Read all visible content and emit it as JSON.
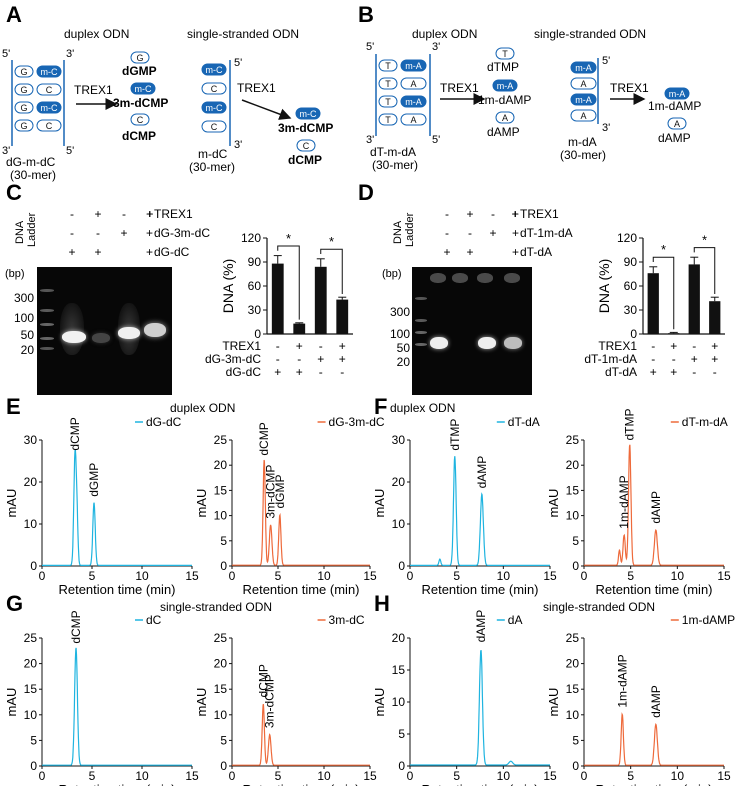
{
  "colors": {
    "cyan": "#1fb4e0",
    "orange": "#ee6a3b",
    "blue": "#1866b4",
    "bar": "#111111"
  },
  "panel_A": {
    "letter": "A",
    "duplex_label": "duplex ODN",
    "ss_label": "single-stranded ODN",
    "enzyme": "TREX1",
    "prime5": "5'",
    "prime3": "3'",
    "base_G": "G",
    "base_C": "C",
    "base_mod": "m-C",
    "duplex_products": [
      "dGMP",
      "3m-dCMP",
      "dCMP"
    ],
    "ss_products": [
      "3m-dCMP",
      "dCMP"
    ],
    "duplex_name": "dG-m-dC",
    "duplex_len": "(30-mer)",
    "ss_name": "m-dC",
    "ss_len": "(30-mer)"
  },
  "panel_B": {
    "letter": "B",
    "duplex_label": "duplex ODN",
    "ss_label": "single-stranded ODN",
    "enzyme": "TREX1",
    "prime5": "5'",
    "prime3": "3'",
    "base_T": "T",
    "base_A": "A",
    "base_mod": "m-A",
    "duplex_products": [
      "dTMP",
      "1m-dAMP",
      "dAMP"
    ],
    "ss_products": [
      "1m-dAMP",
      "dAMP"
    ],
    "duplex_name": "dT-m-dA",
    "duplex_len": "(30-mer)",
    "ss_name": "m-dA",
    "ss_len": "(30-mer)"
  },
  "panel_C": {
    "letter": "C",
    "ladder": [
      "DNA",
      "Ladder"
    ],
    "bp": "(bp)",
    "ladder_sizes": [
      "300",
      "100",
      "50",
      "20"
    ],
    "legend_rows": [
      {
        "label": "TREX1",
        "signs": [
          "-",
          "+",
          "-",
          "+"
        ]
      },
      {
        "label": "dG-3m-dC",
        "signs": [
          "-",
          "-",
          "+",
          "+"
        ]
      },
      {
        "label": "dG-dC",
        "signs": [
          "+",
          "+",
          "-",
          "-"
        ]
      }
    ],
    "row_prefix": "+"
  },
  "panel_D": {
    "letter": "D",
    "ladder": [
      "DNA",
      "Ladder"
    ],
    "bp": "(bp)",
    "ladder_sizes": [
      "300",
      "100",
      "50",
      "20"
    ],
    "legend_rows": [
      {
        "label": "TREX1",
        "signs": [
          "-",
          "+",
          "-",
          "+"
        ]
      },
      {
        "label": "dT-1m-dA",
        "signs": [
          "-",
          "-",
          "+",
          "+"
        ]
      },
      {
        "label": "dT-dA",
        "signs": [
          "+",
          "+",
          "-",
          "-"
        ]
      }
    ],
    "row_prefix": "+"
  },
  "panel_E": {
    "letter": "E",
    "title": "duplex ODN"
  },
  "panel_F": {
    "letter": "F",
    "title": "duplex ODN"
  },
  "panel_G": {
    "letter": "G",
    "title": "single-stranded  ODN"
  },
  "panel_H": {
    "letter": "H",
    "title": "single-stranded ODN"
  },
  "chart_data": [
    {
      "id": "C-bar",
      "type": "bar",
      "ylabel": "DNA (%)",
      "ylim": [
        0,
        120
      ],
      "yticks": [
        "0",
        "30",
        "60",
        "90",
        "120"
      ],
      "categories": [
        "1",
        "2",
        "3",
        "4"
      ],
      "values": [
        88,
        13,
        84,
        43
      ],
      "errors": [
        10,
        1,
        10,
        3
      ],
      "sig": "*",
      "xrows": [
        {
          "label": "TREX1",
          "signs": [
            "-",
            "+",
            "-",
            "+"
          ]
        },
        {
          "label": "dG-3m-dC",
          "signs": [
            "-",
            "-",
            "+",
            "+"
          ]
        },
        {
          "label": "dG-dC",
          "signs": [
            "+",
            "+",
            "-",
            "-"
          ]
        }
      ]
    },
    {
      "id": "D-bar",
      "type": "bar",
      "ylabel": "DNA (%)",
      "ylim": [
        0,
        120
      ],
      "yticks": [
        "0",
        "30",
        "60",
        "90",
        "120"
      ],
      "categories": [
        "1",
        "2",
        "3",
        "4"
      ],
      "values": [
        76,
        1,
        87,
        41
      ],
      "errors": [
        8,
        1,
        9,
        5
      ],
      "sig": "*",
      "xrows": [
        {
          "label": "TREX1",
          "signs": [
            "-",
            "+",
            "-",
            "+"
          ]
        },
        {
          "label": "dT-1m-dA",
          "signs": [
            "-",
            "-",
            "+",
            "+"
          ]
        },
        {
          "label": "dT-dA",
          "signs": [
            "+",
            "+",
            "-",
            "-"
          ]
        }
      ]
    },
    {
      "id": "E1",
      "type": "line",
      "xlabel": "Retention time (min)",
      "ylabel": "mAU",
      "xlim": [
        0,
        15
      ],
      "ylim": [
        0,
        30
      ],
      "xticks": [
        "0",
        "5",
        "10",
        "15"
      ],
      "yticks": [
        "0",
        "10",
        "20",
        "30"
      ],
      "series": [
        {
          "name": "dG-dC",
          "color": "cyan"
        }
      ],
      "peaks": [
        {
          "x": 3.3,
          "h": 26,
          "w": 0.12
        },
        {
          "x": 3.5,
          "h": 10,
          "w": 0.1
        },
        {
          "x": 5.2,
          "h": 15,
          "w": 0.12
        }
      ],
      "peak_labels": [
        {
          "text": "dCMP",
          "x": 3.3,
          "y": 27
        },
        {
          "text": "dGMP",
          "x": 5.2,
          "y": 16
        }
      ]
    },
    {
      "id": "E2",
      "type": "line",
      "xlabel": "Retention time (min)",
      "ylabel": "mAU",
      "xlim": [
        0,
        15
      ],
      "ylim": [
        0,
        25
      ],
      "xticks": [
        "0",
        "5",
        "10",
        "15"
      ],
      "yticks": [
        "0",
        "5",
        "10",
        "15",
        "20",
        "25"
      ],
      "series": [
        {
          "name": "dG-3m-dC",
          "color": "orange"
        }
      ],
      "peaks": [
        {
          "x": 3.5,
          "h": 21,
          "w": 0.12
        },
        {
          "x": 4.2,
          "h": 8,
          "w": 0.14
        },
        {
          "x": 5.2,
          "h": 10,
          "w": 0.12
        }
      ],
      "peak_labels": [
        {
          "text": "dCMP",
          "x": 3.5,
          "y": 21.5
        },
        {
          "text": "3m-dCMP",
          "x": 4.2,
          "y": 9
        },
        {
          "text": "dGMP",
          "x": 5.2,
          "y": 11
        }
      ]
    },
    {
      "id": "F1",
      "type": "line",
      "xlabel": "Retention time (min)",
      "ylabel": "mAU",
      "xlim": [
        0,
        15
      ],
      "ylim": [
        0,
        30
      ],
      "xticks": [
        "0",
        "5",
        "10",
        "15"
      ],
      "yticks": [
        "0",
        "10",
        "20",
        "30"
      ],
      "series": [
        {
          "name": "dT-dA",
          "color": "cyan"
        }
      ],
      "peaks": [
        {
          "x": 4.8,
          "h": 26,
          "w": 0.14
        },
        {
          "x": 3.2,
          "h": 1.5,
          "w": 0.1
        },
        {
          "x": 7.7,
          "h": 17,
          "w": 0.16
        }
      ],
      "peak_labels": [
        {
          "text": "dTMP",
          "x": 4.8,
          "y": 27
        },
        {
          "text": "dAMP",
          "x": 7.7,
          "y": 18
        }
      ]
    },
    {
      "id": "F2",
      "type": "line",
      "xlabel": "Retention time (min)",
      "ylabel": "mAU",
      "xlim": [
        0,
        15
      ],
      "ylim": [
        0,
        25
      ],
      "xticks": [
        "0",
        "5",
        "10",
        "15"
      ],
      "yticks": [
        "0",
        "5",
        "10",
        "15",
        "20",
        "25"
      ],
      "series": [
        {
          "name": "dT-m-dA",
          "color": "orange"
        }
      ],
      "peaks": [
        {
          "x": 3.8,
          "h": 3,
          "w": 0.1
        },
        {
          "x": 4.3,
          "h": 6,
          "w": 0.12
        },
        {
          "x": 4.9,
          "h": 24,
          "w": 0.13
        },
        {
          "x": 7.7,
          "h": 7,
          "w": 0.16
        }
      ],
      "peak_labels": [
        {
          "text": "1m-dAMP",
          "x": 4.3,
          "y": 7
        },
        {
          "text": "dTMP",
          "x": 4.9,
          "y": 24.5
        },
        {
          "text": "dAMP",
          "x": 7.7,
          "y": 8
        }
      ]
    },
    {
      "id": "G1",
      "type": "line",
      "xlabel": "Retention time (min)",
      "ylabel": "mAU",
      "xlim": [
        0,
        15
      ],
      "ylim": [
        0,
        25
      ],
      "xticks": [
        "0",
        "5",
        "10",
        "15"
      ],
      "yticks": [
        "0",
        "5",
        "10",
        "15",
        "20",
        "25"
      ],
      "series": [
        {
          "name": "dC",
          "color": "cyan"
        }
      ],
      "peaks": [
        {
          "x": 3.4,
          "h": 23,
          "w": 0.14
        }
      ],
      "peak_labels": [
        {
          "text": "dCMP",
          "x": 3.4,
          "y": 23.5
        }
      ]
    },
    {
      "id": "G2",
      "type": "line",
      "xlabel": "Retention time (min)",
      "ylabel": "mAU",
      "xlim": [
        0,
        15
      ],
      "ylim": [
        0,
        25
      ],
      "xticks": [
        "0",
        "5",
        "10",
        "15"
      ],
      "yticks": [
        "0",
        "5",
        "10",
        "15",
        "20",
        "25"
      ],
      "series": [
        {
          "name": "3m-dC",
          "color": "orange"
        }
      ],
      "peaks": [
        {
          "x": 3.4,
          "h": 12,
          "w": 0.12
        },
        {
          "x": 4.1,
          "h": 6,
          "w": 0.14
        }
      ],
      "peak_labels": [
        {
          "text": "dCMP",
          "x": 3.4,
          "y": 13
        },
        {
          "text": "3m-dCMP",
          "x": 4.1,
          "y": 7
        }
      ]
    },
    {
      "id": "H1",
      "type": "line",
      "xlabel": "Retention time (min)",
      "ylabel": "mAU",
      "xlim": [
        0,
        15
      ],
      "ylim": [
        0,
        20
      ],
      "xticks": [
        "0",
        "5",
        "10",
        "15"
      ],
      "yticks": [
        "0",
        "5",
        "10",
        "15",
        "20"
      ],
      "series": [
        {
          "name": "dA",
          "color": "cyan"
        }
      ],
      "peaks": [
        {
          "x": 7.6,
          "h": 18,
          "w": 0.16
        },
        {
          "x": 10.8,
          "h": 0.6,
          "w": 0.2
        }
      ],
      "peak_labels": [
        {
          "text": "dAMP",
          "x": 7.6,
          "y": 19
        }
      ]
    },
    {
      "id": "H2",
      "type": "line",
      "xlabel": "Retention time (min)",
      "ylabel": "mAU",
      "xlim": [
        0,
        15
      ],
      "ylim": [
        0,
        25
      ],
      "xticks": [
        "0",
        "5",
        "10",
        "15"
      ],
      "yticks": [
        "0",
        "5",
        "10",
        "15",
        "20",
        "25"
      ],
      "series": [
        {
          "name": "1m-dAMP",
          "color": "orange"
        }
      ],
      "peaks": [
        {
          "x": 4.1,
          "h": 10,
          "w": 0.12
        },
        {
          "x": 7.7,
          "h": 8,
          "w": 0.16
        }
      ],
      "peak_labels": [
        {
          "text": "1m-dAMP",
          "x": 4.1,
          "y": 11
        },
        {
          "text": "dAMP",
          "x": 7.7,
          "y": 9
        }
      ]
    }
  ]
}
